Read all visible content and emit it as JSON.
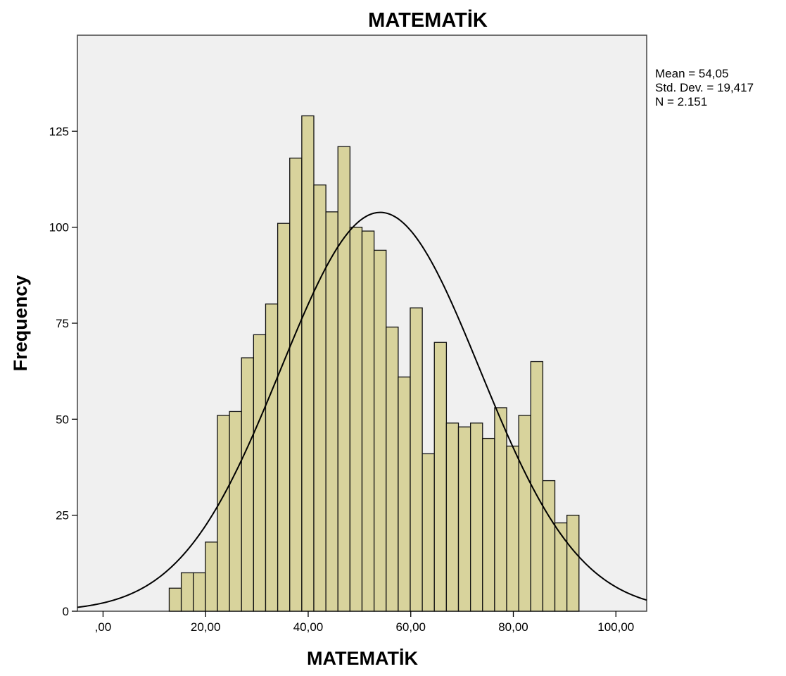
{
  "chart_data": {
    "type": "bar",
    "subtype": "histogram",
    "title": "MATEMATİK",
    "xlabel": "MATEMATİK",
    "ylabel": "Frequency",
    "xlim": [
      -5,
      106
    ],
    "ylim": [
      0,
      150
    ],
    "bin_width": 2.35,
    "bins": [
      {
        "x0": 12.9,
        "x1": 15.25,
        "value": 6
      },
      {
        "x0": 15.25,
        "x1": 17.6,
        "value": 10
      },
      {
        "x0": 17.6,
        "x1": 19.95,
        "value": 10
      },
      {
        "x0": 19.95,
        "x1": 22.3,
        "value": 18
      },
      {
        "x0": 22.3,
        "x1": 24.65,
        "value": 51
      },
      {
        "x0": 24.65,
        "x1": 27.0,
        "value": 52
      },
      {
        "x0": 27.0,
        "x1": 29.35,
        "value": 66
      },
      {
        "x0": 29.35,
        "x1": 31.7,
        "value": 72
      },
      {
        "x0": 31.7,
        "x1": 34.05,
        "value": 80
      },
      {
        "x0": 34.05,
        "x1": 36.4,
        "value": 101
      },
      {
        "x0": 36.4,
        "x1": 38.75,
        "value": 118
      },
      {
        "x0": 38.75,
        "x1": 41.1,
        "value": 129
      },
      {
        "x0": 41.1,
        "x1": 43.45,
        "value": 111
      },
      {
        "x0": 43.45,
        "x1": 45.8,
        "value": 104
      },
      {
        "x0": 45.8,
        "x1": 48.15,
        "value": 121
      },
      {
        "x0": 48.15,
        "x1": 50.5,
        "value": 100
      },
      {
        "x0": 50.5,
        "x1": 52.85,
        "value": 99
      },
      {
        "x0": 52.85,
        "x1": 55.2,
        "value": 94
      },
      {
        "x0": 55.2,
        "x1": 57.55,
        "value": 74
      },
      {
        "x0": 57.55,
        "x1": 59.9,
        "value": 61
      },
      {
        "x0": 59.9,
        "x1": 62.25,
        "value": 79
      },
      {
        "x0": 62.25,
        "x1": 64.6,
        "value": 41
      },
      {
        "x0": 64.6,
        "x1": 66.95,
        "value": 70
      },
      {
        "x0": 66.95,
        "x1": 69.3,
        "value": 49
      },
      {
        "x0": 69.3,
        "x1": 71.65,
        "value": 48
      },
      {
        "x0": 71.65,
        "x1": 74.0,
        "value": 49
      },
      {
        "x0": 74.0,
        "x1": 76.35,
        "value": 45
      },
      {
        "x0": 76.35,
        "x1": 78.7,
        "value": 53
      },
      {
        "x0": 78.7,
        "x1": 81.05,
        "value": 43
      },
      {
        "x0": 81.05,
        "x1": 83.4,
        "value": 51
      },
      {
        "x0": 83.4,
        "x1": 85.75,
        "value": 65
      },
      {
        "x0": 85.75,
        "x1": 88.1,
        "value": 34
      },
      {
        "x0": 88.1,
        "x1": 90.45,
        "value": 23
      },
      {
        "x0": 90.45,
        "x1": 92.8,
        "value": 25
      }
    ],
    "normal_curve": {
      "mean": 54.05,
      "sd": 19.417,
      "n": 2151
    },
    "x_ticks": [
      {
        "value": 0,
        "label": ",00"
      },
      {
        "value": 20,
        "label": "20,00"
      },
      {
        "value": 40,
        "label": "40,00"
      },
      {
        "value": 60,
        "label": "60,00"
      },
      {
        "value": 80,
        "label": "80,00"
      },
      {
        "value": 100,
        "label": "100,00"
      }
    ],
    "y_ticks": [
      {
        "value": 0,
        "label": "0"
      },
      {
        "value": 25,
        "label": "25"
      },
      {
        "value": 50,
        "label": "50"
      },
      {
        "value": 75,
        "label": "75"
      },
      {
        "value": 100,
        "label": "100"
      },
      {
        "value": 125,
        "label": "125"
      }
    ],
    "stats": {
      "mean": "Mean = 54,05",
      "sd": "Std. Dev. = 19,417",
      "n": "N = 2.151"
    },
    "grid": false,
    "colors": {
      "bar_fill": "#d8d39c",
      "bar_stroke": "#111111",
      "plot_bg": "#f0f0f0",
      "curve": "#000000"
    }
  }
}
